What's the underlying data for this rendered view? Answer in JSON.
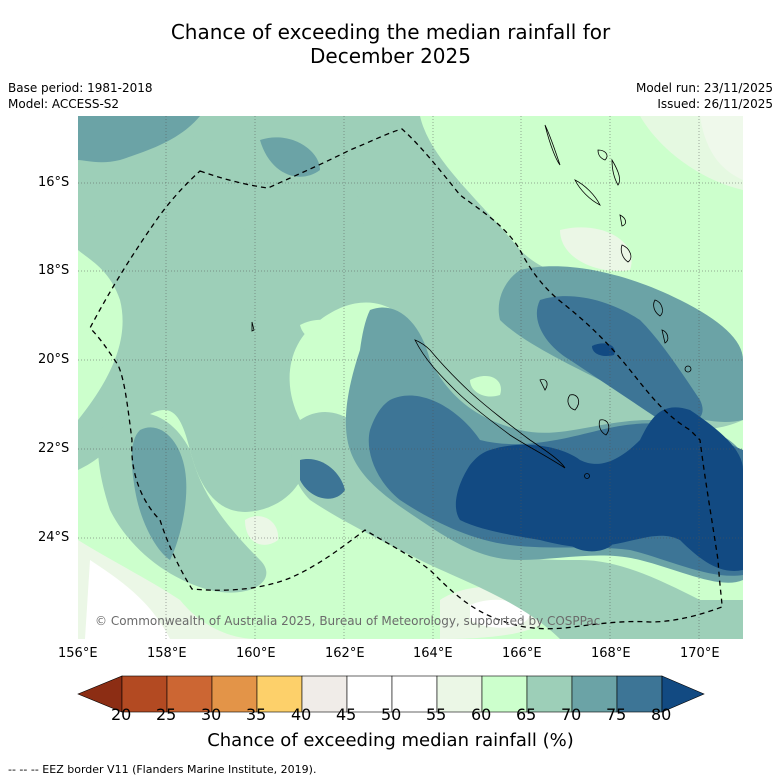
{
  "title": {
    "line1": "Chance of exceeding the median rainfall for",
    "line2": "December 2025"
  },
  "meta": {
    "base_period": "Base period: 1981-2018",
    "model": "Model: ACCESS-S2",
    "model_run": "Model run: 23/11/2025",
    "issued": "Issued: 26/11/2025"
  },
  "axes": {
    "lat_ticks": [
      "16°S",
      "18°S",
      "20°S",
      "22°S",
      "24°S"
    ],
    "lon_ticks": [
      "156°E",
      "158°E",
      "160°E",
      "162°E",
      "164°E",
      "166°E",
      "168°E",
      "170°E"
    ]
  },
  "copyright": "© Commonwealth of Australia 2025, Bureau of Meteorology, supported by COSPPac",
  "colorbar": {
    "label": "Chance of exceeding median rainfall (%)",
    "ticks": [
      "20",
      "25",
      "30",
      "35",
      "40",
      "45",
      "50",
      "55",
      "60",
      "65",
      "70",
      "75",
      "80"
    ],
    "colors": [
      "#8c2d14",
      "#b34a22",
      "#cc6633",
      "#e39448",
      "#fdd06a",
      "#f0ece8",
      "#ffffff",
      "#ffffff",
      "#ebf7e6",
      "#ccffcc",
      "#9dcfb8",
      "#6ba3a6",
      "#3d7596",
      "#124a82"
    ]
  },
  "footnote": "-- -- -- EEZ border V11 (Flanders Marine Institute, 2019)."
}
